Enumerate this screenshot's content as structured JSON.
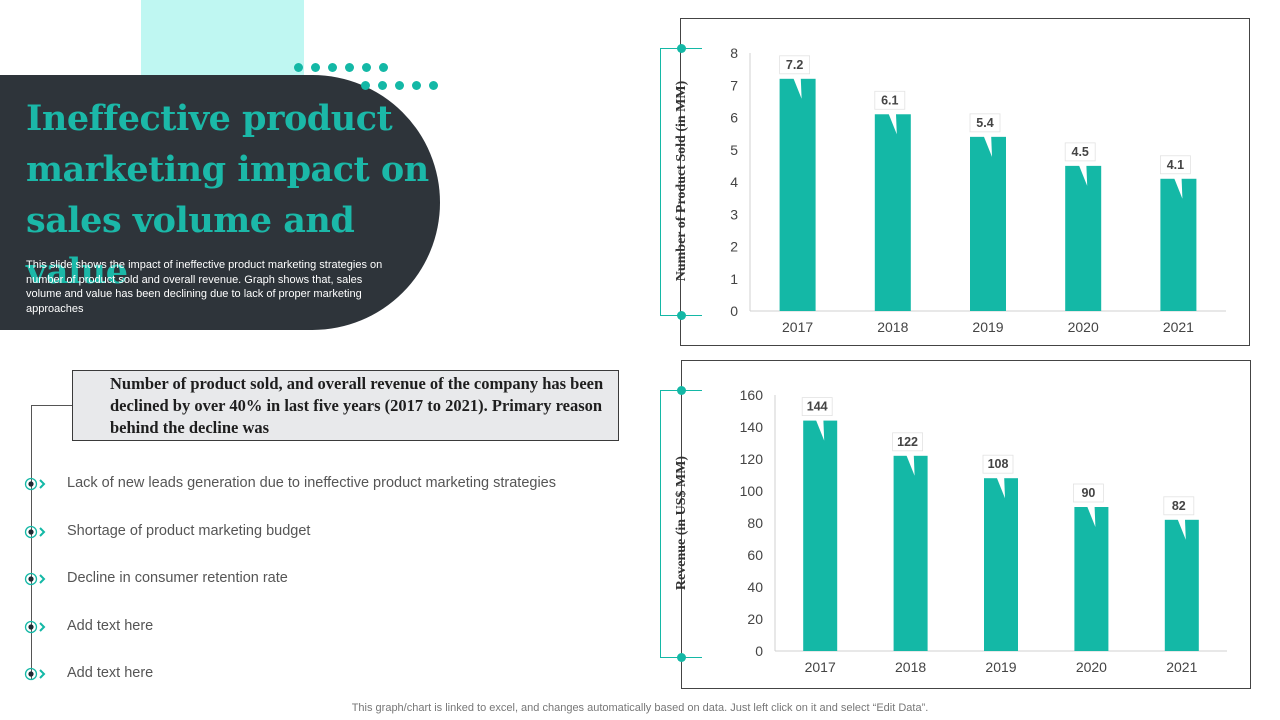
{
  "header": {
    "title": "Ineffective product marketing impact on sales volume and value",
    "subtitle": "This slide shows the impact of ineffective product marketing strategies on number of product sold and overall revenue. Graph shows that, sales volume and value has been declining due to lack of proper marketing approaches"
  },
  "callout": {
    "text": "Number of product sold, and overall revenue of the company has been declined by over 40% in last five years (2017 to 2021). Primary reason behind the decline was"
  },
  "reasons": [
    "Lack of new leads generation due to ineffective product marketing strategies",
    "Shortage of product marketing budget",
    "Decline in consumer retention rate",
    "Add text here",
    "Add text here"
  ],
  "footer": {
    "note": "This graph/chart is linked to excel,  and changes automatically based on data. Just left click on it and select “Edit Data”."
  },
  "colors": {
    "accent": "#14b8a6",
    "dark": "#2e343a"
  },
  "chart_data": [
    {
      "type": "bar",
      "title": "",
      "ylabel": "Number of Product Sold (in MM)",
      "xlabel": "",
      "categories": [
        "2017",
        "2018",
        "2019",
        "2020",
        "2021"
      ],
      "values": [
        7.2,
        6.1,
        5.4,
        4.5,
        4.1
      ],
      "labels": [
        "7.2",
        "6.1",
        "5.4",
        "4.5",
        "4.1"
      ],
      "ylim": [
        0,
        8
      ],
      "yticks": [
        0,
        1,
        2,
        3,
        4,
        5,
        6,
        7,
        8
      ],
      "grid": false
    },
    {
      "type": "bar",
      "title": "",
      "ylabel": "Revenue (in US$ MM)",
      "xlabel": "",
      "categories": [
        "2017",
        "2018",
        "2019",
        "2020",
        "2021"
      ],
      "values": [
        144,
        122,
        108,
        90,
        82
      ],
      "labels": [
        "144",
        "122",
        "108",
        "90",
        "82"
      ],
      "ylim": [
        0,
        160
      ],
      "yticks": [
        0,
        20,
        40,
        60,
        80,
        100,
        120,
        140,
        160
      ],
      "grid": false
    }
  ]
}
